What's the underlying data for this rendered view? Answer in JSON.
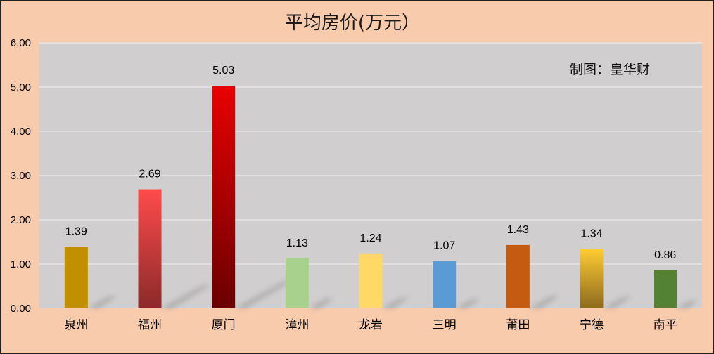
{
  "chart_data": {
    "type": "bar",
    "title": "平均房价(万元）",
    "annotation": "制图：皇华财",
    "categories": [
      "泉州",
      "福州",
      "厦门",
      "漳州",
      "龙岩",
      "三明",
      "莆田",
      "宁德",
      "南平"
    ],
    "values": [
      1.39,
      2.69,
      5.03,
      1.13,
      1.24,
      1.07,
      1.43,
      1.34,
      0.86
    ],
    "value_labels": [
      "1.39",
      "2.69",
      "5.03",
      "1.13",
      "1.24",
      "1.07",
      "1.43",
      "1.34",
      "0.86"
    ],
    "yticks": [
      "0.00",
      "1.00",
      "2.00",
      "3.00",
      "4.00",
      "5.00",
      "6.00"
    ],
    "ylim": [
      0,
      6
    ],
    "grid": true,
    "legend": "none",
    "colors": {
      "page_background": "#F8CBAD",
      "plot_background": "#D0CECE",
      "gridline": "#E6E6E6",
      "bars": [
        [
          "#C09000",
          "#C09000"
        ],
        [
          "#FF4B4B",
          "#8B2A2A"
        ],
        [
          "#E80000",
          "#6B0000"
        ],
        [
          "#A9D18E",
          "#A9D18E"
        ],
        [
          "#FFD966",
          "#FFD966"
        ],
        [
          "#5B9BD5",
          "#5B9BD5"
        ],
        [
          "#C55A11",
          "#C55A11"
        ],
        [
          "#FFCC33",
          "#8C6A1E"
        ],
        [
          "#548235",
          "#548235"
        ]
      ]
    }
  }
}
